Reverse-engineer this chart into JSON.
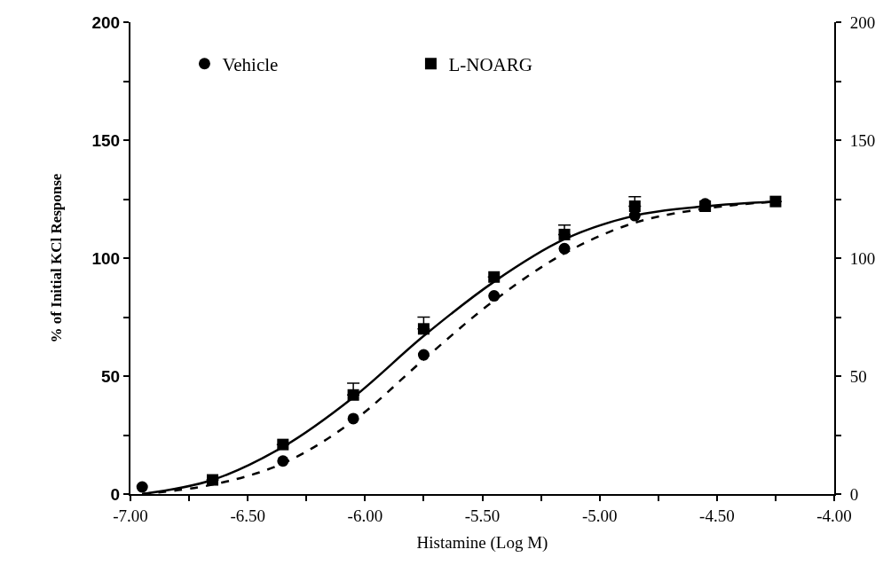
{
  "chart_data": {
    "type": "scatter",
    "xlabel": "Histamine (Log M)",
    "ylabel": "% of Initial KCl Response",
    "x": [
      -6.95,
      -6.65,
      -6.35,
      -6.05,
      -5.75,
      -5.45,
      -5.15,
      -4.85,
      -4.55,
      -4.25
    ],
    "series": [
      {
        "name": "Vehicle",
        "color": "#000000",
        "marker": "circle",
        "values": [
          3,
          null,
          14,
          32,
          59,
          84,
          104,
          118,
          123,
          null
        ]
      },
      {
        "name": "L-NOARG",
        "color": "#000000",
        "marker": "square",
        "values": [
          null,
          6,
          21,
          42,
          70,
          92,
          110,
          122,
          122,
          124
        ],
        "errors": [
          null,
          null,
          null,
          [
            42,
            47
          ],
          [
            70,
            75
          ],
          null,
          [
            110,
            114
          ],
          [
            122,
            126
          ],
          null,
          null
        ]
      },
      {
        "type": "line",
        "color": "#000000",
        "marker": "none",
        "line_style": "dashed",
        "values": [
          0,
          4,
          13,
          31,
          57,
          82,
          102,
          115,
          121,
          124
        ]
      },
      {
        "type": "line",
        "color": "#000000",
        "marker": "none",
        "line_style": "solid",
        "values": [
          0,
          6,
          20,
          41,
          67,
          90,
          108,
          118,
          122,
          124
        ]
      }
    ],
    "xlim": [
      -7,
      -4
    ],
    "xticks": [
      {
        "value": -7,
        "label": "-7.00"
      },
      {
        "value": -6.75,
        "label": null
      },
      {
        "value": -6.5,
        "label": "-6.50"
      },
      {
        "value": -6.25,
        "label": null
      },
      {
        "value": -6,
        "label": "-6.00"
      },
      {
        "value": -5.75,
        "label": null
      },
      {
        "value": -5.5,
        "label": "-5.50"
      },
      {
        "value": -5.25,
        "label": null
      },
      {
        "value": -5,
        "label": "-5.00"
      },
      {
        "value": -4.75,
        "label": null
      },
      {
        "value": -4.5,
        "label": "-4.50"
      },
      {
        "value": -4.25,
        "label": null
      },
      {
        "value": -4,
        "label": "-4.00"
      }
    ],
    "ylim": [
      0,
      200
    ],
    "yticks": [
      0,
      {
        "value": 25,
        "label": null
      },
      50,
      {
        "value": 75,
        "label": null
      },
      100,
      {
        "value": 125,
        "label": null
      },
      150,
      {
        "value": 175,
        "label": null
      },
      200
    ],
    "y2lim": [
      0,
      200
    ],
    "y2ticks": [
      0,
      {
        "value": 25,
        "label": null
      },
      50,
      {
        "value": 75,
        "label": null
      },
      100,
      {
        "value": 125,
        "label": null
      },
      150,
      {
        "value": 175,
        "label": null
      },
      200
    ],
    "legend": "top left"
  }
}
